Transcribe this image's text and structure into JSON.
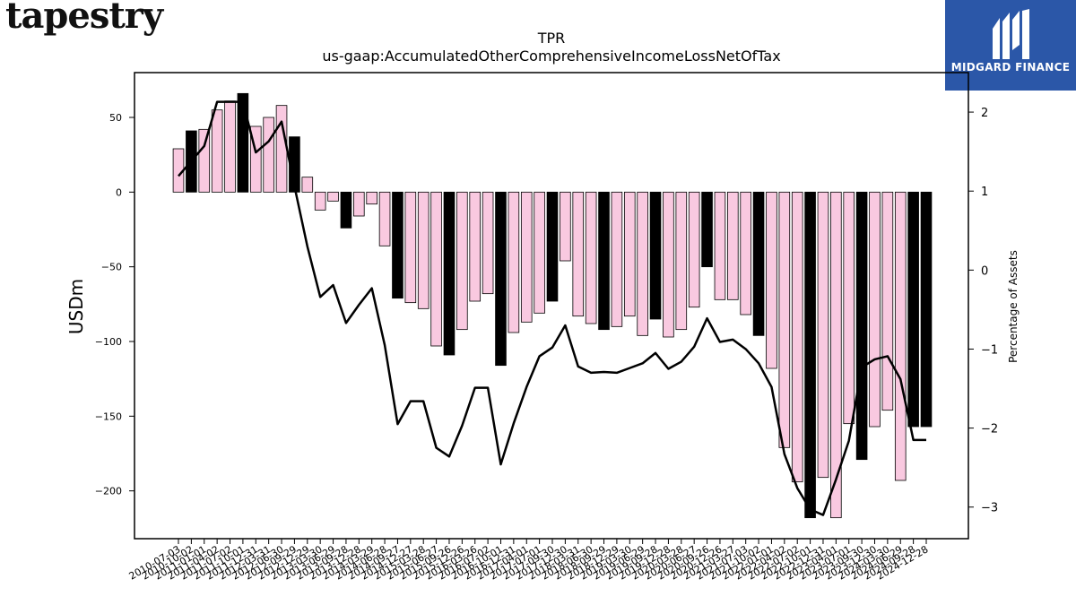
{
  "brand": {
    "name": "tapestry",
    "partner": "MIDGARD FINANCE"
  },
  "colors": {
    "pink": "#f9c9e0",
    "black": "#000000",
    "logo_bg": "#2b57a8"
  },
  "chart_data": {
    "type": "bar",
    "title": "TPR",
    "subtitle": "us-gaap:AccumulatedOtherComprehensiveIncomeLossNetOfTax",
    "ylabel": "USDm",
    "y2label": "Percentage of Assets",
    "ylim": [
      -232,
      80
    ],
    "y2lim": [
      -3.4,
      2.5
    ],
    "yticks": [
      50,
      0,
      -50,
      -100,
      -150,
      -200
    ],
    "y2ticks": [
      2,
      1,
      0,
      -1,
      -2,
      -3
    ],
    "x": [
      "2010-07-03",
      "2010-10-02",
      "2011-01-01",
      "2011-04-02",
      "2011-07-02",
      "2011-10-01",
      "2011-12-31",
      "2012-03-31",
      "2012-06-30",
      "2012-09-29",
      "2012-12-29",
      "2013-03-30",
      "2013-06-29",
      "2013-09-28",
      "2013-12-28",
      "2014-03-29",
      "2014-06-28",
      "2014-09-27",
      "2014-12-27",
      "2015-03-28",
      "2015-06-27",
      "2015-09-26",
      "2015-12-26",
      "2016-03-26",
      "2016-07-02",
      "2016-10-01",
      "2016-12-31",
      "2017-04-01",
      "2017-07-01",
      "2017-09-30",
      "2017-12-30",
      "2018-03-31",
      "2018-06-30",
      "2018-09-29",
      "2018-12-29",
      "2019-03-30",
      "2019-06-29",
      "2019-09-28",
      "2019-12-28",
      "2020-03-28",
      "2020-06-27",
      "2020-09-26",
      "2020-12-26",
      "2021-03-27",
      "2021-07-03",
      "2021-10-02",
      "2022-01-01",
      "2022-04-02",
      "2022-07-02",
      "2022-10-01",
      "2022-12-31",
      "2023-04-01",
      "2023-07-01",
      "2023-09-30",
      "2023-12-30",
      "2024-03-30",
      "2024-06-29",
      "2024-09-28",
      "2024-12-28"
    ],
    "xticklabels": [
      "2010-07-03",
      "2010-10-02",
      "2011-01-01",
      "2011-04-02",
      "2011-07-02",
      "2011-10-01",
      "2011-12-31",
      "2012-03-31",
      "2012-06-30",
      "2012-09-29",
      "2012-12-29",
      "2013-03-30",
      "2013-06-29",
      "2013-09-28",
      "2013-12-28",
      "2014-03-29",
      "2014-06-28",
      "2014-09-27",
      "2014-12-27",
      "2015-03-28",
      "2015-06-27",
      "2015-09-26",
      "2015-12-26",
      "2016-03-26",
      "2016-07-02",
      "2016-10-01",
      "2016-12-31",
      "2017-04-01",
      "2017-07-01",
      "2017-09-30",
      "2017-12-30",
      "2018-03-31",
      "2018-06-30",
      "2018-09-29",
      "2018-12-29",
      "2019-03-30",
      "2019-06-29",
      "2019-09-28",
      "2019-12-28",
      "2020-03-28",
      "2020-06-27",
      "2020-09-26",
      "2020-12-26",
      "2021-03-27",
      "2021-07-03",
      "2021-10-02",
      "2022-01-01",
      "2022-04-02",
      "2022-07-02",
      "2022-10-01",
      "2022-12-31",
      "2023-04-01",
      "2023-07-01",
      "2023-09-30",
      "2023-12-30",
      "2024-03-30",
      "2024-06-29",
      "2024-09-28",
      "2024-12-28"
    ],
    "values": [
      29,
      41,
      42,
      55,
      61,
      66,
      44,
      50,
      58,
      37,
      10,
      -12,
      -6,
      -24,
      -16,
      -8,
      -36,
      -71,
      -74,
      -78,
      -103,
      -109,
      -92,
      -73,
      -68,
      -116,
      -94,
      -87,
      -81,
      -73,
      -46,
      -83,
      -88,
      -92,
      -90,
      -83,
      -96,
      -85,
      -97,
      -92,
      -77,
      -50,
      -72,
      -72,
      -82,
      -96,
      -118,
      -171,
      -194,
      -218,
      -191,
      -218,
      -155,
      -179,
      -157,
      -146,
      -193,
      -157,
      -157
    ],
    "highlight": [
      false,
      true,
      false,
      false,
      false,
      true,
      false,
      false,
      false,
      true,
      false,
      false,
      false,
      true,
      false,
      false,
      false,
      true,
      false,
      false,
      false,
      true,
      false,
      false,
      false,
      true,
      false,
      false,
      false,
      true,
      false,
      false,
      false,
      true,
      false,
      false,
      false,
      true,
      false,
      false,
      false,
      true,
      false,
      false,
      false,
      true,
      false,
      false,
      false,
      true,
      false,
      false,
      false,
      true,
      false,
      false,
      false,
      true,
      true
    ],
    "pct_of_assets": [
      1.19,
      1.38,
      1.57,
      2.13,
      2.13,
      2.13,
      1.49,
      1.63,
      1.88,
      1.06,
      0.3,
      -0.34,
      -0.19,
      -0.67,
      -0.44,
      -0.23,
      -0.95,
      -1.95,
      -1.66,
      -1.66,
      -2.25,
      -2.36,
      -1.97,
      -1.49,
      -1.49,
      -2.46,
      -1.94,
      -1.48,
      -1.09,
      -0.98,
      -0.7,
      -1.22,
      -1.3,
      -1.29,
      -1.3,
      -1.24,
      -1.18,
      -1.05,
      -1.25,
      -1.16,
      -0.97,
      -0.61,
      -0.91,
      -0.88,
      -1.0,
      -1.18,
      -1.48,
      -2.33,
      -2.76,
      -3.03,
      -3.1,
      -2.65,
      -2.16,
      -1.23,
      -1.13,
      -1.09,
      -1.38,
      -2.15,
      -2.15
    ],
    "grid": false,
    "legend": "none"
  }
}
